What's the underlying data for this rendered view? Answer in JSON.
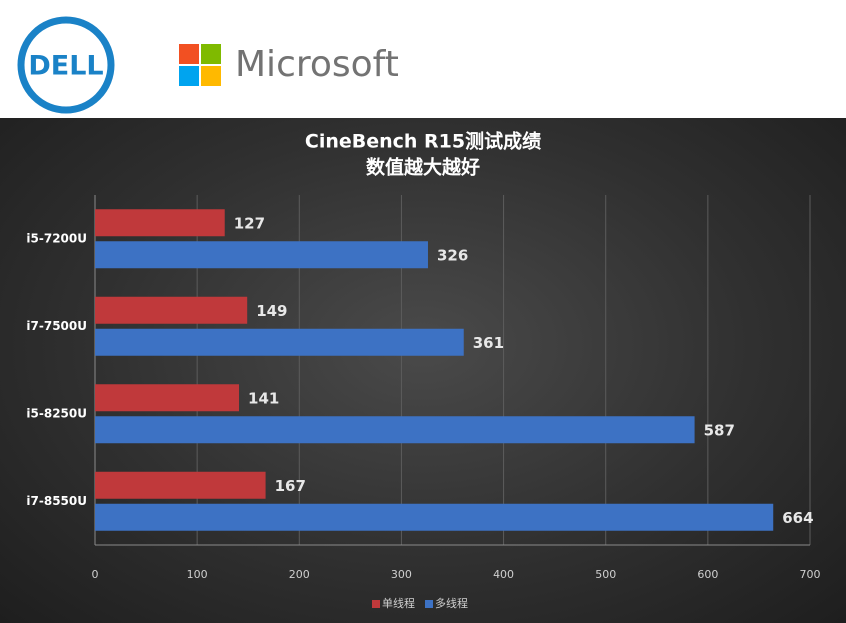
{
  "header": {
    "dell_logo": "DELL",
    "microsoft_logo": "Microsoft"
  },
  "chart_data": {
    "type": "bar",
    "orientation": "horizontal",
    "title": "CineBench R15测试成绩",
    "subtitle": "数值越大越好",
    "categories": [
      "i5-7200U",
      "i7-7500U",
      "i5-8250U",
      "i7-8550U"
    ],
    "series": [
      {
        "name": "单线程",
        "color": "#c0393b",
        "values": [
          127,
          149,
          141,
          167
        ]
      },
      {
        "name": "多线程",
        "color": "#3d72c4",
        "values": [
          326,
          361,
          587,
          664
        ]
      }
    ],
    "xlim": [
      0,
      700
    ],
    "xticks": [
      0,
      100,
      200,
      300,
      400,
      500,
      600,
      700
    ],
    "grid": true,
    "legend": "bottom"
  }
}
